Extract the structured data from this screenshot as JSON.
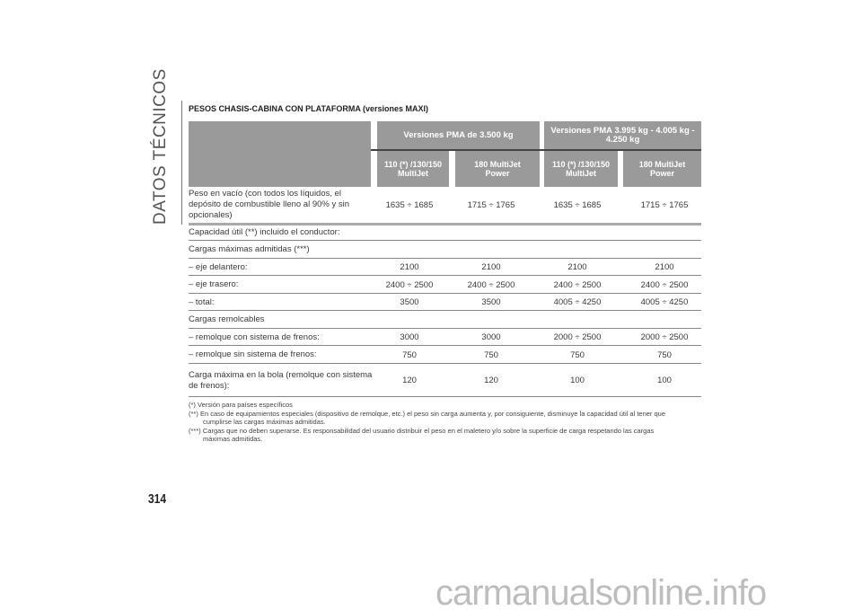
{
  "side_title": "DATOS TÉCNICOS",
  "title": "PESOS CHASIS-CABINA CON PLATAFORMA (versiones MAXI)",
  "header": {
    "group1": "Versiones PMA de 3.500 kg",
    "group2": "Versiones PMA 3.995 kg - 4.005 kg - 4.250 kg",
    "cols": [
      "110 (*) /130/150 MultiJet",
      "180 MultiJet Power",
      "110 (*) /130/150 MultiJet",
      "180 MultiJet Power"
    ]
  },
  "rows": [
    {
      "label": "Peso en vacío (con todos los líquidos, el depósito de combustible lleno al 90% y sin opcionales)",
      "values": [
        "1635 ÷ 1685",
        "1715 ÷ 1765",
        "1635 ÷ 1685",
        "1715 ÷ 1765"
      ]
    },
    {
      "label": "Capacidad útil (**) incluido el conductor:",
      "values": []
    },
    {
      "label": "Cargas máximas admitidas (***)",
      "values": []
    },
    {
      "label": "– eje delantero:",
      "values": [
        "2100",
        "2100",
        "2100",
        "2100"
      ]
    },
    {
      "label": "– eje trasero:",
      "values": [
        "2400 ÷ 2500",
        "2400 ÷ 2500",
        "2400 ÷ 2500",
        "2400 ÷ 2500"
      ]
    },
    {
      "label": "– total:",
      "values": [
        "3500",
        "3500",
        "4005 ÷ 4250",
        "4005 ÷ 4250"
      ]
    },
    {
      "label": "Cargas remolcables",
      "values": []
    },
    {
      "label": "– remolque con sistema de frenos:",
      "values": [
        "3000",
        "3000",
        "2000 ÷ 2500",
        "2000 ÷ 2500"
      ]
    },
    {
      "label": "– remolque sin sistema de frenos:",
      "values": [
        "750",
        "750",
        "750",
        "750"
      ]
    },
    {
      "label": "Carga máxima en la bola (remolque con sistema de frenos):",
      "values": [
        "120",
        "120",
        "100",
        "100"
      ]
    }
  ],
  "footnotes": [
    {
      "mark": "(*)",
      "text": "Versión para países específicos",
      "cont": ""
    },
    {
      "mark": "(**)",
      "text": "En caso de equipamientos especiales (dispositivo de remolque, etc.) el peso sin carga aumenta y, por consiguiente, disminuye la capacidad útil al tener que",
      "cont": "cumplirse las cargas máximas admitidas."
    },
    {
      "mark": "(***)",
      "text": "Cargas que no deben superarse. Es responsabilidad del usuario distribuir el peso en el maletero y/o sobre la superficie de carga respetando las cargas",
      "cont": "máximas admitidas."
    }
  ],
  "page_number": "314",
  "watermark": "carmanualsonline.info",
  "colors": {
    "header_bg": "#9a9a9a",
    "header_text": "#ffffff"
  }
}
